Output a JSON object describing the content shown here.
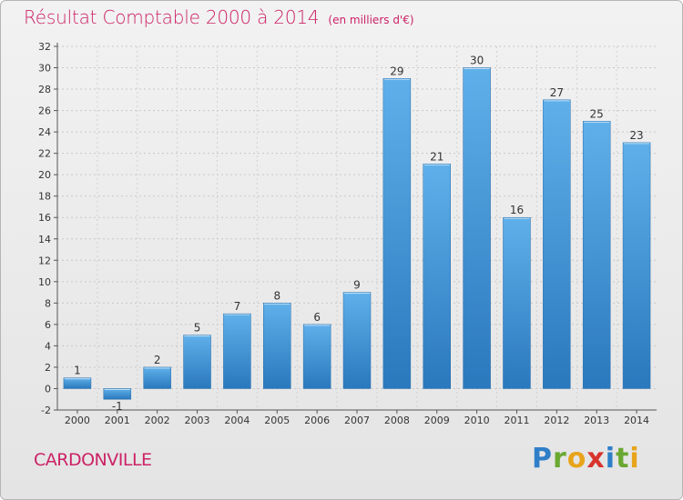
{
  "chart_data": {
    "type": "bar",
    "title": "Résultat Comptable 2000 à 2014",
    "unit": "(en milliers d'€)",
    "categories": [
      "2000",
      "2001",
      "2002",
      "2003",
      "2004",
      "2005",
      "2006",
      "2007",
      "2008",
      "2009",
      "2010",
      "2011",
      "2012",
      "2013",
      "2014"
    ],
    "values": [
      1,
      -1,
      2,
      5,
      7,
      8,
      6,
      9,
      29,
      21,
      30,
      16,
      27,
      25,
      23
    ],
    "ylim": [
      -2,
      32
    ],
    "yticks": [
      -2,
      0,
      2,
      4,
      6,
      8,
      10,
      12,
      14,
      16,
      18,
      20,
      22,
      24,
      26,
      28,
      30,
      32
    ],
    "grid": true,
    "bar_color": "#3a8fd4",
    "xlabel": "",
    "ylabel": ""
  },
  "commune": "CARDONVILLE",
  "logo": {
    "letters": [
      "P",
      "r",
      "o",
      "x",
      "i",
      "t",
      "i"
    ],
    "colors": [
      "#2f7fc8",
      "#6aa832",
      "#e8a41a",
      "#d8332d",
      "#2f7fc8",
      "#6aa832",
      "#e8a41a"
    ]
  },
  "colors": {
    "accent": "#cc2266"
  }
}
